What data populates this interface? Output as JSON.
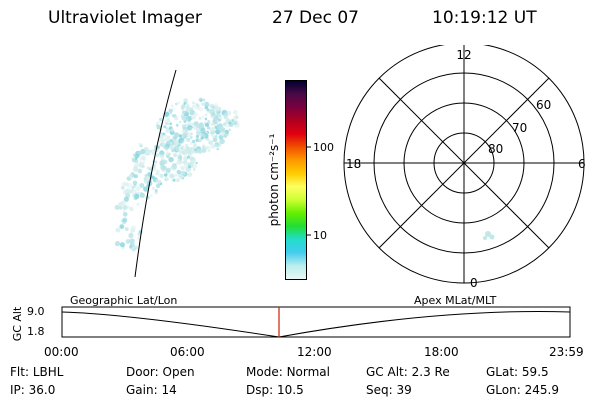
{
  "header": {
    "title": "Ultraviolet Imager",
    "date": "27 Dec 07",
    "time": "10:19:12 UT"
  },
  "colorbar": {
    "unit_label": "photon cm⁻²s⁻¹",
    "ticks": [
      "100",
      "10"
    ],
    "colors": [
      "#000033",
      "#4a0a45",
      "#7a0040",
      "#b00020",
      "#e00010",
      "#f05000",
      "#ff9800",
      "#ffcc00",
      "#ffff60",
      "#ccff33",
      "#66ee00",
      "#22dd33",
      "#22ddcc",
      "#44ccee",
      "#bbeeee",
      "#e8f6f6"
    ]
  },
  "polar_plot": {
    "mlt_labels": [
      "12",
      "18",
      "6",
      "0"
    ],
    "mlat_labels": [
      "60",
      "70",
      "80"
    ]
  },
  "timeline": {
    "axis_label": "GC Alt",
    "y_ticks": [
      "9.0",
      "1.8"
    ],
    "left_label": "Geographic Lat/Lon",
    "right_label": "Apex MLat/MLT",
    "x_ticks": [
      "00:00",
      "06:00",
      "12:00",
      "18:00",
      "23:59"
    ],
    "current_marker_color": "#cc2200"
  },
  "status": [
    {
      "label": "Flt:",
      "value": "LBHL"
    },
    {
      "label": "Door:",
      "value": "Open"
    },
    {
      "label": "Mode:",
      "value": "Normal"
    },
    {
      "label": "GC Alt:",
      "value": "2.3 Re"
    },
    {
      "label": "GLat:",
      "value": "59.5"
    },
    {
      "label": "IP:",
      "value": "36.0"
    },
    {
      "label": "Gain:",
      "value": "14"
    },
    {
      "label": "Dsp:",
      "value": "10.5"
    },
    {
      "label": "Seq:",
      "value": "39"
    },
    {
      "label": "GLon:",
      "value": "245.9"
    }
  ]
}
